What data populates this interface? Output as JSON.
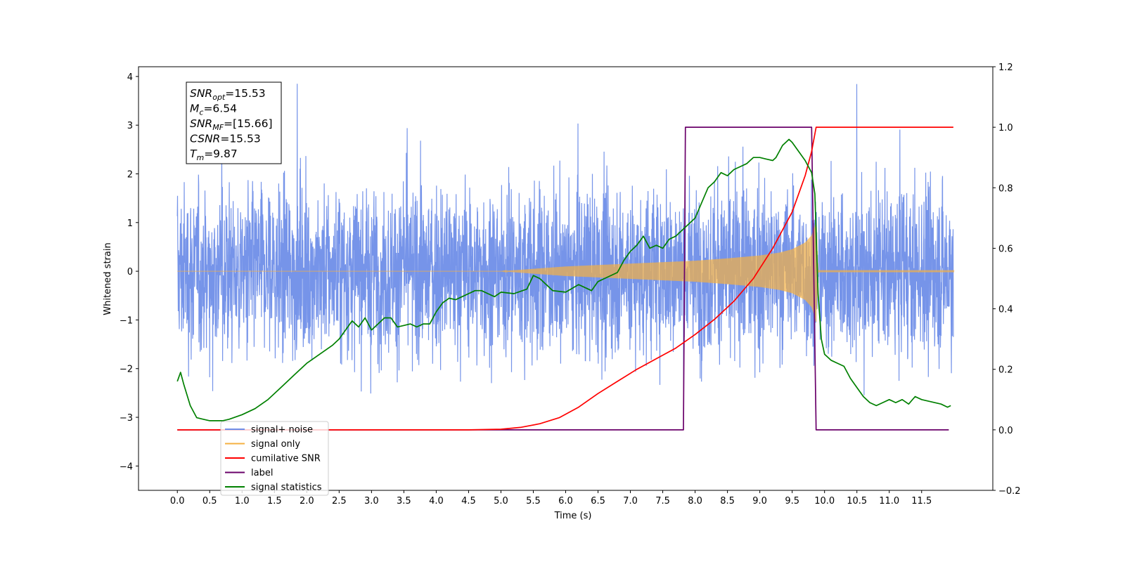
{
  "chart_data": {
    "type": "line",
    "xlabel": "Time (s)",
    "ylabel": "Whitened strain",
    "xlim": [
      -0.6,
      12.6
    ],
    "ylim": [
      -4.5,
      4.2
    ],
    "y2lim": [
      -0.2,
      1.2
    ],
    "x_ticks": [
      "0.0",
      "0.5",
      "1.0",
      "1.5",
      "2.0",
      "2.5",
      "3.0",
      "3.5",
      "4.0",
      "4.5",
      "5.0",
      "5.5",
      "6.0",
      "6.5",
      "7.0",
      "7.5",
      "8.0",
      "8.5",
      "9.0",
      "9.5",
      "10.0",
      "10.5",
      "11.0",
      "11.5"
    ],
    "y_ticks": [
      "−4",
      "−3",
      "−2",
      "−1",
      "0",
      "1",
      "2",
      "3",
      "4"
    ],
    "y2_ticks": [
      "−0.2",
      "0.0",
      "0.2",
      "0.4",
      "0.6",
      "0.8",
      "1.0",
      "1.2"
    ],
    "legend_position": "lower-left",
    "grid": false,
    "annotation": {
      "lines": [
        {
          "sym": "SNR",
          "sub": "opt",
          "value": "=15.53"
        },
        {
          "sym": "M",
          "sub": "c",
          "value": "=6.54"
        },
        {
          "sym": "SNR",
          "sub": "MF",
          "value": "=[15.66]"
        },
        {
          "sym": "CSNR",
          "sub": "",
          "value": "=15.53"
        },
        {
          "sym": "T",
          "sub": "m",
          "value": "=9.87"
        }
      ]
    },
    "series": [
      {
        "name": "signal+ noise",
        "axis": "left",
        "color": "#6f8ee8",
        "style": "noise",
        "x_start": 0.0,
        "x_end": 11.99,
        "approx_sigma": 0.85,
        "peak_range": [
          -4.1,
          3.85
        ]
      },
      {
        "name": "signal only",
        "axis": "left",
        "color": "#f5b041",
        "style": "chirp-envelope",
        "envelope_x": [
          0.0,
          5.0,
          5.5,
          6.0,
          6.5,
          7.0,
          7.5,
          8.0,
          8.5,
          9.0,
          9.3,
          9.5,
          9.7,
          9.8,
          9.85,
          9.87,
          9.9,
          12.0
        ],
        "envelope_y": [
          0.0,
          0.0,
          0.05,
          0.1,
          0.13,
          0.16,
          0.19,
          0.22,
          0.27,
          0.33,
          0.39,
          0.46,
          0.6,
          0.75,
          0.95,
          1.1,
          0.02,
          0.02
        ]
      },
      {
        "name": "cumilative SNR",
        "axis": "right",
        "color": "#ff0000",
        "x": [
          0.0,
          4.5,
          5.0,
          5.3,
          5.6,
          5.9,
          6.2,
          6.5,
          6.8,
          7.1,
          7.4,
          7.7,
          8.0,
          8.3,
          8.6,
          8.9,
          9.2,
          9.5,
          9.7,
          9.8,
          9.87,
          9.9,
          11.99
        ],
        "values": [
          0.0,
          0.0,
          0.002,
          0.008,
          0.02,
          0.04,
          0.075,
          0.12,
          0.16,
          0.2,
          0.235,
          0.27,
          0.315,
          0.365,
          0.425,
          0.5,
          0.6,
          0.72,
          0.84,
          0.92,
          1.0,
          1.0,
          1.0
        ]
      },
      {
        "name": "label",
        "axis": "right",
        "color": "#6a006a",
        "x": [
          0.0,
          7.82,
          7.85,
          9.8,
          9.87,
          11.92
        ],
        "values": [
          0.0,
          0.0,
          1.0,
          1.0,
          0.0,
          0.0
        ]
      },
      {
        "name": "signal statistics",
        "axis": "right",
        "color": "#008000",
        "x": [
          0.0,
          0.05,
          0.1,
          0.2,
          0.3,
          0.4,
          0.5,
          0.6,
          0.7,
          0.8,
          1.0,
          1.2,
          1.4,
          1.6,
          1.8,
          2.0,
          2.2,
          2.4,
          2.5,
          2.6,
          2.7,
          2.8,
          2.9,
          3.0,
          3.1,
          3.2,
          3.3,
          3.4,
          3.5,
          3.6,
          3.7,
          3.8,
          3.9,
          4.0,
          4.1,
          4.2,
          4.3,
          4.4,
          4.5,
          4.6,
          4.7,
          4.8,
          4.9,
          5.0,
          5.2,
          5.4,
          5.5,
          5.6,
          5.7,
          5.8,
          6.0,
          6.2,
          6.4,
          6.5,
          6.6,
          6.8,
          6.9,
          7.0,
          7.1,
          7.2,
          7.3,
          7.4,
          7.5,
          7.6,
          7.7,
          7.8,
          7.9,
          8.0,
          8.1,
          8.2,
          8.3,
          8.4,
          8.5,
          8.6,
          8.7,
          8.8,
          8.9,
          9.0,
          9.1,
          9.2,
          9.25,
          9.3,
          9.35,
          9.4,
          9.45,
          9.5,
          9.6,
          9.7,
          9.75,
          9.8,
          9.85,
          9.9,
          9.95,
          10.0,
          10.1,
          10.2,
          10.3,
          10.4,
          10.5,
          10.6,
          10.7,
          10.8,
          10.9,
          11.0,
          11.1,
          11.2,
          11.3,
          11.4,
          11.5,
          11.6,
          11.7,
          11.8,
          11.9,
          11.95
        ],
        "values": [
          0.16,
          0.19,
          0.15,
          0.08,
          0.04,
          0.035,
          0.03,
          0.03,
          0.03,
          0.035,
          0.05,
          0.07,
          0.1,
          0.14,
          0.18,
          0.22,
          0.25,
          0.28,
          0.3,
          0.33,
          0.36,
          0.34,
          0.37,
          0.33,
          0.35,
          0.37,
          0.37,
          0.34,
          0.345,
          0.35,
          0.34,
          0.35,
          0.35,
          0.39,
          0.42,
          0.435,
          0.43,
          0.44,
          0.45,
          0.46,
          0.46,
          0.45,
          0.44,
          0.455,
          0.45,
          0.465,
          0.51,
          0.5,
          0.48,
          0.46,
          0.455,
          0.48,
          0.46,
          0.49,
          0.5,
          0.52,
          0.56,
          0.59,
          0.61,
          0.64,
          0.6,
          0.61,
          0.6,
          0.63,
          0.64,
          0.66,
          0.68,
          0.7,
          0.75,
          0.8,
          0.82,
          0.85,
          0.84,
          0.86,
          0.87,
          0.88,
          0.9,
          0.9,
          0.895,
          0.89,
          0.9,
          0.92,
          0.94,
          0.95,
          0.96,
          0.95,
          0.92,
          0.89,
          0.87,
          0.85,
          0.78,
          0.45,
          0.3,
          0.25,
          0.23,
          0.22,
          0.21,
          0.17,
          0.14,
          0.11,
          0.09,
          0.08,
          0.09,
          0.1,
          0.09,
          0.1,
          0.085,
          0.11,
          0.1,
          0.095,
          0.09,
          0.085,
          0.075,
          0.08
        ]
      }
    ]
  }
}
